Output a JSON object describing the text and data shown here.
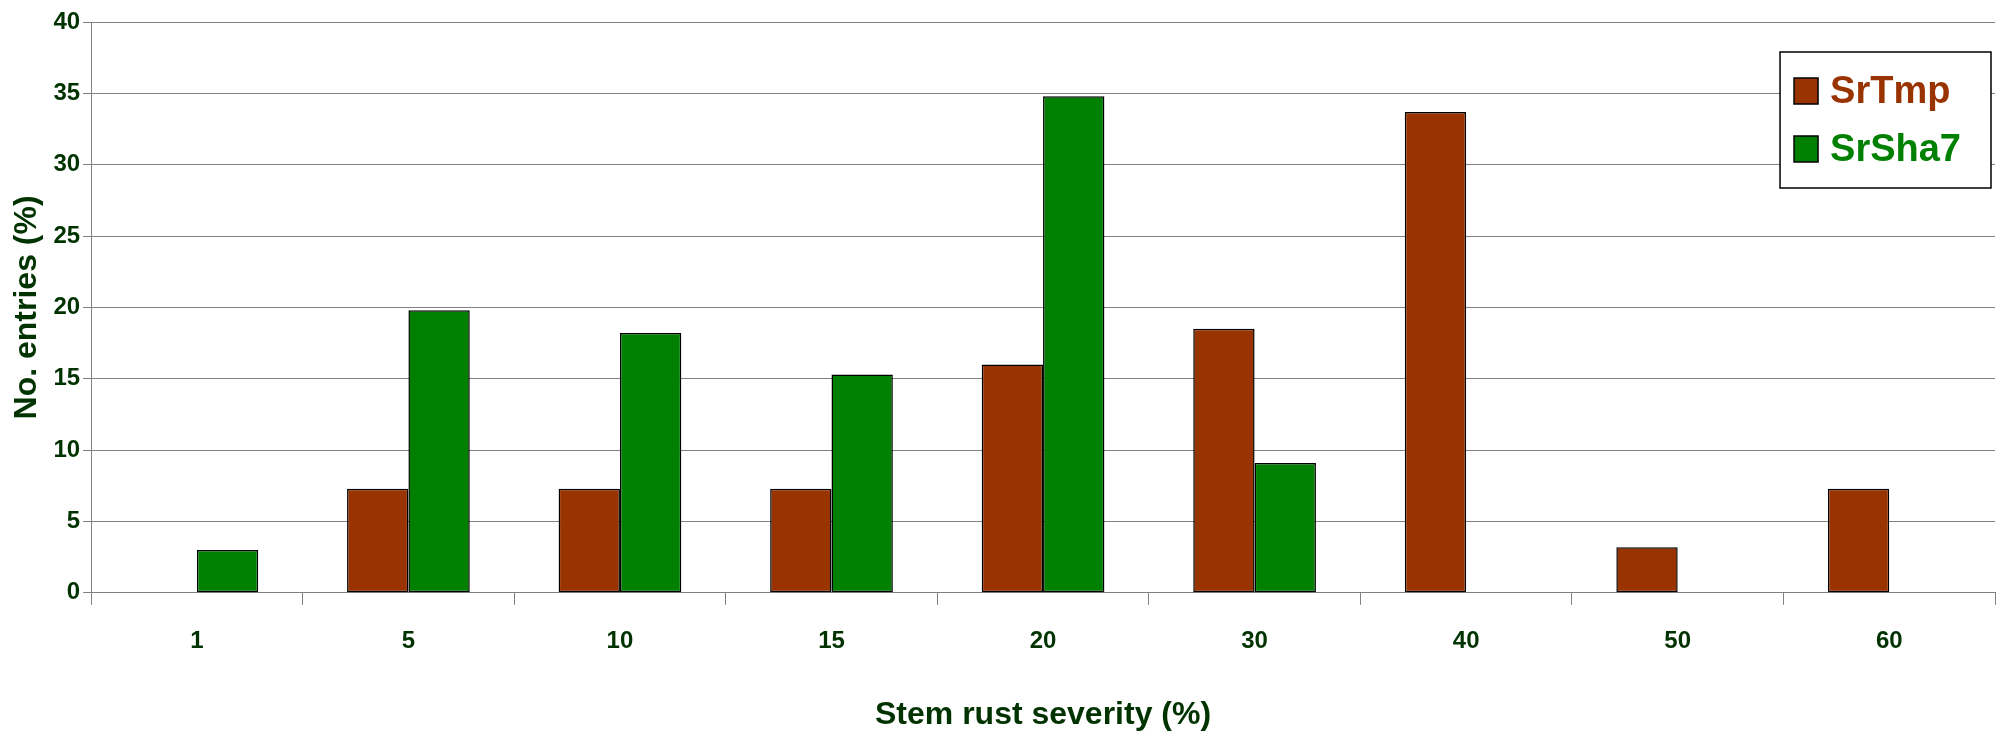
{
  "chart_data": {
    "type": "bar",
    "xlabel": "Stem rust severity (%)",
    "ylabel": "No. entries (%)",
    "categories": [
      "1",
      "5",
      "10",
      "15",
      "20",
      "30",
      "40",
      "50",
      "60"
    ],
    "series": [
      {
        "name": "SrTmp",
        "color": "#993300",
        "values": [
          0,
          7.3,
          7.3,
          7.3,
          16,
          18.5,
          33.7,
          3.2,
          7.3
        ]
      },
      {
        "name": "SrSha7",
        "color": "#008000",
        "values": [
          3,
          19.8,
          18.2,
          15.3,
          34.8,
          9.1,
          0,
          0,
          0
        ]
      }
    ],
    "ylim": [
      0,
      40
    ],
    "yticks": [
      0,
      5,
      10,
      15,
      20,
      25,
      30,
      35,
      40
    ],
    "grid": "y",
    "legend": "top right"
  }
}
